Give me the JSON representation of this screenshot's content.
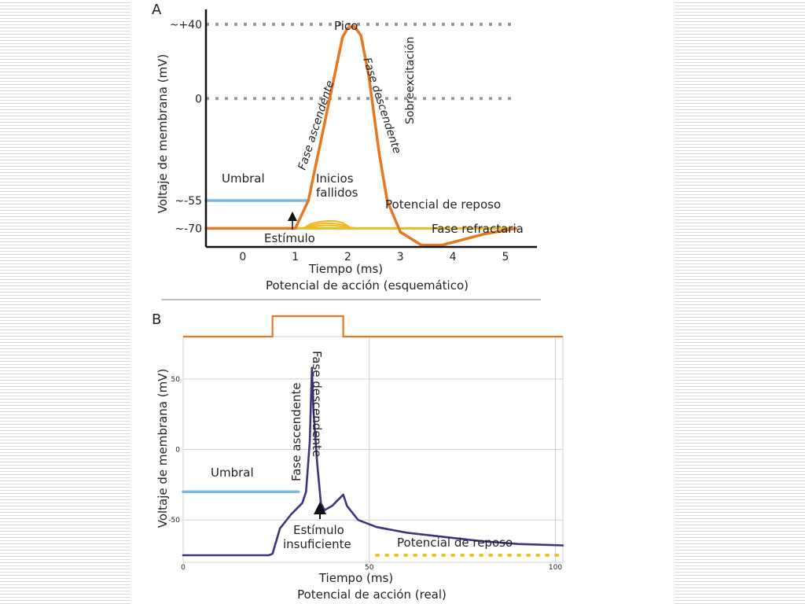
{
  "background": {
    "stripe_color": "#dcdcdc",
    "panel_color": "#ffffff"
  },
  "chart_data": [
    {
      "panel_label": "A",
      "type": "line",
      "title": "Potencial de acción (esquemático)",
      "xlabel": "Tiempo (ms)",
      "ylabel": "Voltaje de membrana (mV)",
      "xlim": [
        -0.7,
        5.6
      ],
      "ylim": [
        -80,
        48
      ],
      "x_ticks": [
        0,
        1,
        2,
        3,
        4,
        5
      ],
      "y_ticks": [
        {
          "value": 40,
          "label": "~+40"
        },
        {
          "value": 0,
          "label": "0"
        },
        {
          "value": -55,
          "label": "~-55"
        },
        {
          "value": -70,
          "label": "~-70"
        }
      ],
      "dotted_reference_levels": [
        40,
        0
      ],
      "colors": {
        "action_potential": "#e87722",
        "threshold": "#7ab8e0",
        "resting": "#f0b91e",
        "axis": "#111111",
        "grid": "#999999"
      },
      "series": [
        {
          "role": "action_potential",
          "x": [
            -0.7,
            1.0,
            1.25,
            1.9,
            2.0,
            2.12,
            2.25,
            2.4,
            2.6,
            2.75,
            3.0,
            3.4,
            3.8,
            4.2,
            4.6,
            5.0,
            5.2
          ],
          "y": [
            -70,
            -70,
            -55,
            33,
            38,
            39,
            34,
            12,
            -30,
            -55,
            -72,
            -79,
            -79,
            -76,
            -73,
            -71,
            -70
          ]
        },
        {
          "role": "threshold",
          "x": [
            -0.7,
            1.25
          ],
          "y": [
            -55,
            -55
          ]
        },
        {
          "role": "resting",
          "x": [
            1.0,
            5.2
          ],
          "y": [
            -70,
            -70
          ]
        },
        {
          "role": "failed_initiation",
          "x": [
            1.0,
            1.15,
            1.3,
            1.45,
            1.6,
            1.75,
            1.9,
            2.05,
            2.2
          ],
          "y": [
            -70,
            -70,
            -67.5,
            -66.5,
            -66,
            -66,
            -67,
            -69.5,
            -70
          ]
        },
        {
          "role": "failed_initiation",
          "x": [
            1.0,
            1.15,
            1.3,
            1.45,
            1.6,
            1.75,
            1.9,
            2.05,
            2.2
          ],
          "y": [
            -70,
            -70,
            -68.5,
            -67.5,
            -67.2,
            -67.4,
            -68,
            -69.6,
            -70
          ]
        },
        {
          "role": "failed_initiation",
          "x": [
            1.0,
            1.15,
            1.3,
            1.45,
            1.6,
            1.75,
            1.9,
            2.05,
            2.2
          ],
          "y": [
            -70,
            -70,
            -69.3,
            -68.6,
            -68.4,
            -68.5,
            -69,
            -69.8,
            -70
          ]
        }
      ],
      "annotations": [
        {
          "key": "umbral",
          "text": "Umbral"
        },
        {
          "key": "pico",
          "text": "Pico"
        },
        {
          "key": "fase_ascendente",
          "text": "Fase ascendente"
        },
        {
          "key": "fase_descendente",
          "text": "Fase descendente"
        },
        {
          "key": "sobreexcitacion",
          "text": "Sobreexcitación"
        },
        {
          "key": "inicios_1",
          "text": "Inicios"
        },
        {
          "key": "inicios_2",
          "text": "fallidos"
        },
        {
          "key": "reposo",
          "text": "Potencial de reposo"
        },
        {
          "key": "refractaria",
          "text": "Fase refractaria"
        },
        {
          "key": "estimulo",
          "text": "Estímulo"
        }
      ]
    },
    {
      "panel_label": "B",
      "type": "line",
      "title": "Potencial de acción (real)",
      "xlabel": "Tiempo (ms)",
      "ylabel": "Voltaje de membrana (mV)",
      "xlim": [
        0,
        102
      ],
      "ylim": [
        -80,
        80
      ],
      "x_ticks": [
        0,
        50,
        100
      ],
      "y_ticks": [
        {
          "value": 50,
          "label": "50"
        },
        {
          "value": 0,
          "label": "0"
        },
        {
          "value": -50,
          "label": "-50"
        }
      ],
      "grid": true,
      "colors": {
        "trace": "#3a3580",
        "threshold": "#7ab8e0",
        "stimulus": "#e87722",
        "resting": "#f0c419",
        "grid": "#d0d0d0"
      },
      "stimulus_pulse": {
        "start_ms": 24,
        "end_ms": 43
      },
      "series": [
        {
          "role": "trace",
          "x": [
            0,
            23,
            24,
            26,
            29,
            32,
            33,
            34,
            34.6,
            35,
            36,
            37,
            38,
            40,
            43,
            44,
            47,
            52,
            60,
            70,
            80,
            90,
            102
          ],
          "y": [
            -75,
            -75,
            -74,
            -56,
            -46,
            -38,
            -30,
            5,
            58,
            28,
            -10,
            -38,
            -43,
            -40,
            -32,
            -40,
            -50,
            -55,
            -59,
            -62,
            -65,
            -67,
            -68
          ]
        },
        {
          "role": "threshold",
          "x": [
            0,
            31
          ],
          "y": [
            -30,
            -30
          ]
        },
        {
          "role": "resting",
          "x": [
            52,
            102
          ],
          "y": [
            -75,
            -75
          ]
        }
      ],
      "annotations": [
        {
          "key": "umbral",
          "text": "Umbral"
        },
        {
          "key": "fase_ascendente",
          "text": "Fase ascendente"
        },
        {
          "key": "fase_descendente",
          "text": "Fase descendente"
        },
        {
          "key": "estimulo_1",
          "text": "Estímulo"
        },
        {
          "key": "estimulo_2",
          "text": "insuficiente"
        },
        {
          "key": "reposo",
          "text": "Potencial de reposo"
        }
      ]
    }
  ]
}
